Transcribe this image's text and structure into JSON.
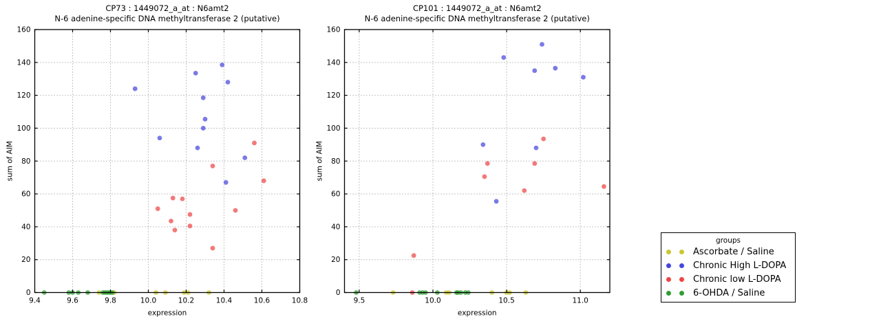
{
  "page": {
    "background": "#ffffff"
  },
  "colors": {
    "ascorbate": "#c9c832",
    "chronic_high": "#4646dd",
    "chronic_low": "#ee4545",
    "ohda": "#2f9e33",
    "grid": "#8a8a8a",
    "axis": "#000000"
  },
  "legend": {
    "title": "groups",
    "items": [
      {
        "label": "Ascorbate / Saline",
        "color_key": "ascorbate"
      },
      {
        "label": "Chronic High L-DOPA",
        "color_key": "chronic_high"
      },
      {
        "label": "Chronic low L-DOPA",
        "color_key": "chronic_low"
      },
      {
        "label": "6-OHDA / Saline",
        "color_key": "ohda"
      }
    ]
  },
  "chart_data": [
    {
      "type": "scatter",
      "title": "CP73 : 1449072_a_at : N6amt2",
      "subtitle": "N-6 adenine-specific DNA methyltransferase 2 (putative)",
      "xlabel": "expression",
      "ylabel": "sum of AIM",
      "xlim": [
        9.4,
        10.8
      ],
      "ylim": [
        0,
        160
      ],
      "xticks": [
        9.4,
        9.6,
        9.8,
        10.0,
        10.2,
        10.4,
        10.6,
        10.8
      ],
      "xtick_labels": [
        "9.4",
        "9.6",
        "9.8",
        "10.0",
        "10.2",
        "10.4",
        "10.6",
        "10.8"
      ],
      "yticks": [
        0,
        20,
        40,
        60,
        80,
        100,
        120,
        140,
        160
      ],
      "ytick_labels": [
        "0",
        "20",
        "40",
        "60",
        "80",
        "100",
        "120",
        "140",
        "160"
      ],
      "grid": "dotted",
      "legend_position": "outside-right",
      "series": [
        {
          "name": "Ascorbate / Saline",
          "color_key": "ascorbate",
          "points": [
            [
              9.74,
              0
            ],
            [
              9.82,
              0
            ],
            [
              10.04,
              0
            ],
            [
              10.09,
              0
            ],
            [
              10.19,
              0
            ],
            [
              10.21,
              0
            ],
            [
              10.32,
              0
            ]
          ]
        },
        {
          "name": "Chronic High L-DOPA",
          "color_key": "chronic_high",
          "points": [
            [
              9.93,
              124
            ],
            [
              10.06,
              94
            ],
            [
              10.25,
              133.5
            ],
            [
              10.26,
              88
            ],
            [
              10.29,
              118.5
            ],
            [
              10.29,
              100
            ],
            [
              10.3,
              105.5
            ],
            [
              10.39,
              138.5
            ],
            [
              10.41,
              67
            ],
            [
              10.42,
              128
            ],
            [
              10.51,
              82
            ]
          ]
        },
        {
          "name": "Chronic low L-DOPA",
          "color_key": "chronic_low",
          "points": [
            [
              10.05,
              51
            ],
            [
              10.12,
              43.5
            ],
            [
              10.13,
              57.5
            ],
            [
              10.14,
              38
            ],
            [
              10.18,
              57
            ],
            [
              10.22,
              47.5
            ],
            [
              10.22,
              40.5
            ],
            [
              10.34,
              77
            ],
            [
              10.34,
              27
            ],
            [
              10.46,
              50
            ],
            [
              10.56,
              91
            ],
            [
              10.61,
              68
            ]
          ]
        },
        {
          "name": "6-OHDA / Saline",
          "color_key": "ohda",
          "points": [
            [
              9.45,
              0
            ],
            [
              9.58,
              0
            ],
            [
              9.6,
              0
            ],
            [
              9.63,
              0
            ],
            [
              9.68,
              0
            ],
            [
              9.76,
              0
            ],
            [
              9.77,
              0
            ],
            [
              9.78,
              0
            ],
            [
              9.79,
              0
            ],
            [
              9.8,
              0
            ],
            [
              9.81,
              0
            ]
          ]
        }
      ]
    },
    {
      "type": "scatter",
      "title": "CP101 : 1449072_a_at : N6amt2",
      "subtitle": "N-6 adenine-specific DNA methyltransferase 2 (putative)",
      "xlabel": "expression",
      "ylabel": "sum of AIM",
      "xlim": [
        9.4,
        11.2
      ],
      "ylim": [
        0,
        160
      ],
      "xticks": [
        9.5,
        10.0,
        10.5,
        11.0
      ],
      "xtick_labels": [
        "9.5",
        "10.0",
        "10.5",
        "11.0"
      ],
      "yticks": [
        0,
        20,
        40,
        60,
        80,
        100,
        120,
        140,
        160
      ],
      "ytick_labels": [
        "0",
        "20",
        "40",
        "60",
        "80",
        "100",
        "120",
        "140",
        "160"
      ],
      "grid": "dotted",
      "legend_position": "outside-right",
      "series": [
        {
          "name": "Ascorbate / Saline",
          "color_key": "ascorbate",
          "points": [
            [
              9.73,
              0
            ],
            [
              10.09,
              0
            ],
            [
              10.11,
              0
            ],
            [
              10.4,
              0
            ],
            [
              10.5,
              0
            ],
            [
              10.52,
              0
            ],
            [
              10.63,
              0
            ]
          ]
        },
        {
          "name": "Chronic High L-DOPA",
          "color_key": "chronic_high",
          "points": [
            [
              10.34,
              90
            ],
            [
              10.43,
              55.5
            ],
            [
              10.48,
              143
            ],
            [
              10.69,
              135
            ],
            [
              10.7,
              88
            ],
            [
              10.74,
              151
            ],
            [
              10.83,
              136.5
            ],
            [
              11.02,
              131
            ]
          ]
        },
        {
          "name": "Chronic low L-DOPA",
          "color_key": "chronic_low",
          "points": [
            [
              9.86,
              0
            ],
            [
              9.87,
              22.5
            ],
            [
              10.35,
              70.5
            ],
            [
              10.37,
              78.5
            ],
            [
              10.62,
              62
            ],
            [
              10.69,
              78.5
            ],
            [
              10.75,
              93.5
            ],
            [
              11.16,
              64.5
            ]
          ]
        },
        {
          "name": "6-OHDA / Saline",
          "color_key": "ohda",
          "points": [
            [
              9.48,
              0
            ],
            [
              9.91,
              0
            ],
            [
              9.93,
              0
            ],
            [
              9.95,
              0
            ],
            [
              10.03,
              0
            ],
            [
              10.16,
              0
            ],
            [
              10.17,
              0
            ],
            [
              10.19,
              0
            ],
            [
              10.22,
              0
            ],
            [
              10.24,
              0
            ]
          ]
        }
      ]
    }
  ]
}
